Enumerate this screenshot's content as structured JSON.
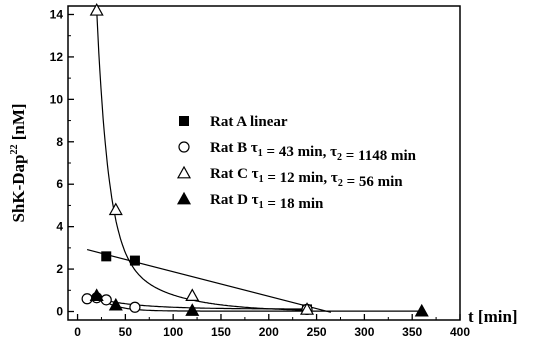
{
  "chart_data": {
    "type": "scatter",
    "xlabel": "t [min]",
    "ylabel_parts": {
      "base": "ShK-Dap",
      "sup": "22",
      "unit": "[nM]"
    },
    "xlim": [
      -10,
      400
    ],
    "ylim": [
      -0.4,
      14.4
    ],
    "xticks": [
      0,
      50,
      100,
      150,
      200,
      250,
      300,
      350,
      400
    ],
    "yticks": [
      0,
      2,
      4,
      6,
      8,
      10,
      12,
      14
    ],
    "grid": false,
    "legend_position": "center-right",
    "series": [
      {
        "name": "Rat A",
        "label_text": "linear",
        "marker": "square-filled",
        "points": [
          [
            30,
            2.6
          ],
          [
            60,
            2.4
          ],
          [
            240,
            0.1
          ]
        ],
        "fit": {
          "type": "linear",
          "x0": 10,
          "y0": 2.92,
          "slope": -0.0116,
          "x_end": 265
        }
      },
      {
        "name": "Rat B",
        "label_parts": [
          {
            "t": "τ"
          },
          {
            "t": "1",
            "sub": true
          },
          {
            "t": " = 43 min, "
          },
          {
            "t": "τ"
          },
          {
            "t": "2",
            "sub": true
          },
          {
            "t": " = 1148 min"
          }
        ],
        "marker": "circle-open",
        "points": [
          [
            10,
            0.6
          ],
          [
            20,
            0.65
          ],
          [
            30,
            0.55
          ],
          [
            60,
            0.2
          ],
          [
            240,
            0.1
          ]
        ],
        "fit": {
          "type": "biexp",
          "x_start": 10,
          "x_end": 245,
          "A1": 0.75,
          "tau1": 43,
          "A2": 0.14,
          "tau2": 1148,
          "t0": 0
        }
      },
      {
        "name": "Rat C",
        "label_parts": [
          {
            "t": "τ"
          },
          {
            "t": "1",
            "sub": true
          },
          {
            "t": " = 12 min, "
          },
          {
            "t": "τ"
          },
          {
            "t": "2",
            "sub": true
          },
          {
            "t": " = 56 min"
          }
        ],
        "marker": "triangle-open",
        "points": [
          [
            20,
            14.2
          ],
          [
            40,
            4.8
          ],
          [
            120,
            0.75
          ],
          [
            240,
            0.1
          ]
        ],
        "fit": {
          "type": "biexp",
          "x_start": 20,
          "x_end": 245,
          "A1": 11.0,
          "tau1": 12,
          "A2": 3.2,
          "tau2": 56,
          "t0": 20
        }
      },
      {
        "name": "Rat D",
        "label_parts": [
          {
            "t": "τ"
          },
          {
            "t": "1",
            "sub": true
          },
          {
            "t": " = 18 min"
          }
        ],
        "marker": "triangle-filled",
        "points": [
          [
            20,
            0.75
          ],
          [
            40,
            0.3
          ],
          [
            120,
            0.05
          ],
          [
            360,
            0.02
          ]
        ],
        "fit": {
          "type": "biexp",
          "x_start": 20,
          "x_end": 360,
          "A1": 0.72,
          "tau1": 18,
          "A2": 0.02,
          "tau2": 100000,
          "t0": 20
        }
      }
    ]
  }
}
